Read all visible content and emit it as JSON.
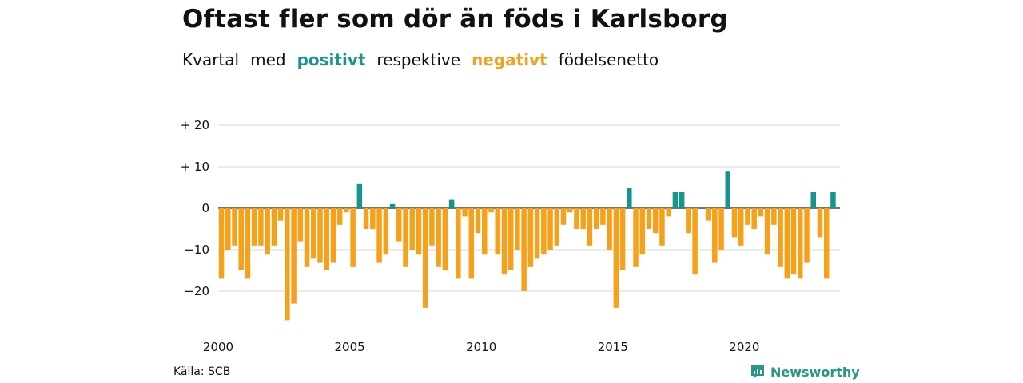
{
  "title": "Oftast fler som dör än föds i Karlsborg",
  "subtitle": {
    "w1": "Kvartal",
    "w2": "med",
    "positive": "positivt",
    "w3": "respektive",
    "negative": "negativt",
    "w4": "födelsenetto"
  },
  "source": "Källa: SCB",
  "brand": "Newsworthy",
  "colors": {
    "positive": "#16958a",
    "negative": "#f5a11b",
    "grid": "#d9d9d9",
    "brand": "#2a9589"
  },
  "chart_data": {
    "type": "bar",
    "x_start": "2000Q1",
    "ylim": [
      -28,
      22
    ],
    "yticks": [
      {
        "value": 20,
        "label": "+ 20"
      },
      {
        "value": 10,
        "label": "+ 10"
      },
      {
        "value": 0,
        "label": "0"
      },
      {
        "value": -10,
        "label": "−10"
      },
      {
        "value": -20,
        "label": "−20"
      }
    ],
    "xticks": [
      {
        "year": 2000,
        "label": "2000"
      },
      {
        "year": 2005,
        "label": "2005"
      },
      {
        "year": 2010,
        "label": "2010"
      },
      {
        "year": 2015,
        "label": "2015"
      },
      {
        "year": 2020,
        "label": "2020"
      }
    ],
    "values": [
      -17,
      -10,
      -9,
      -15,
      -17,
      -9,
      -9,
      -11,
      -9,
      -3,
      -27,
      -23,
      -8,
      -14,
      -12,
      -13,
      -15,
      -13,
      -4,
      -1,
      -14,
      6,
      -5,
      -5,
      -13,
      -11,
      1,
      -8,
      -14,
      -10,
      -11,
      -24,
      -9,
      -14,
      -15,
      2,
      -17,
      -2,
      -17,
      -6,
      -11,
      -1,
      -11,
      -16,
      -15,
      -10,
      -20,
      -14,
      -12,
      -11,
      -10,
      -9,
      -4,
      -1,
      -5,
      -5,
      -9,
      -5,
      -4,
      -10,
      -24,
      -15,
      5,
      -14,
      -11,
      -5,
      -6,
      -9,
      -2,
      4,
      4,
      -6,
      -16,
      0,
      -3,
      -13,
      -10,
      9,
      -7,
      -9,
      -4,
      -5,
      -2,
      -11,
      -4,
      -14,
      -17,
      -16,
      -17,
      -13,
      4,
      -7,
      -17,
      4
    ]
  }
}
